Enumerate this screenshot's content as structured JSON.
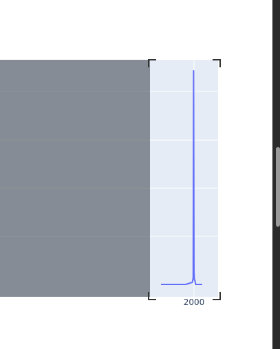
{
  "plot": {
    "background": "#e5ecf6",
    "line_color": "#636efa",
    "selection_shade": "rgba(45,52,60,0.52)"
  },
  "chart_data": {
    "type": "line",
    "title": "",
    "xlabel": "",
    "ylabel": "",
    "x_tick_labels": [
      "2000"
    ],
    "grid": true,
    "series": [
      {
        "x": [
          1960,
          1990,
          1998,
          1999,
          1999.5,
          2000,
          2000.5,
          2001,
          2002,
          2003,
          2010
        ],
        "y": [
          0,
          0,
          0.01,
          0.03,
          1.0,
          0.06,
          0.02,
          0.02,
          0,
          0,
          0
        ]
      }
    ]
  },
  "scrollbar": {
    "track_color": "#2b2b2b",
    "thumb_color": "#9a9a9a"
  }
}
